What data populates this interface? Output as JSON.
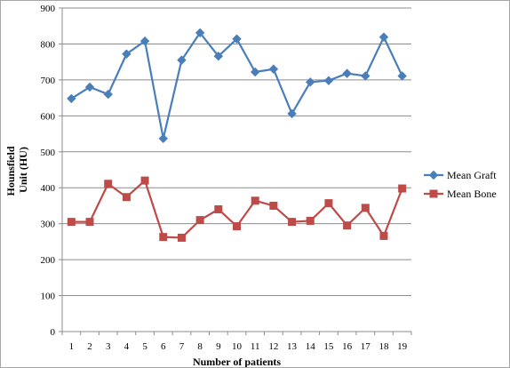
{
  "chart_data": {
    "type": "line",
    "title": "",
    "xlabel": "Number of  patients",
    "ylabel_lines": [
      "Hounsfield",
      "Unit (HU)"
    ],
    "categories": [
      "1",
      "2",
      "3",
      "4",
      "5",
      "6",
      "7",
      "8",
      "9",
      "10",
      "11",
      "12",
      "13",
      "14",
      "15",
      "16",
      "17",
      "18",
      "19"
    ],
    "ylim": [
      0,
      900
    ],
    "yticks": [
      0,
      100,
      200,
      300,
      400,
      500,
      600,
      700,
      800,
      900
    ],
    "grid": true,
    "legend_position": "right",
    "series": [
      {
        "name": "Mean Graft",
        "color": "#4a7ebb",
        "marker": "diamond",
        "values": [
          648,
          680,
          660,
          772,
          808,
          537,
          755,
          831,
          766,
          814,
          722,
          730,
          606,
          694,
          698,
          718,
          711,
          819,
          711
        ]
      },
      {
        "name": "Mean Bone",
        "color": "#be4b48",
        "marker": "square",
        "values": [
          305,
          305,
          411,
          374,
          420,
          263,
          261,
          310,
          340,
          293,
          364,
          350,
          305,
          308,
          357,
          295,
          344,
          266,
          398
        ]
      }
    ]
  }
}
